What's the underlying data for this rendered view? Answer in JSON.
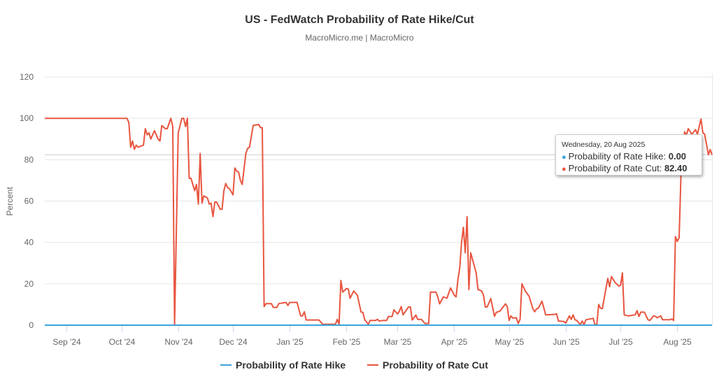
{
  "header": {
    "title": "US - FedWatch Probability of Rate Hike/Cut",
    "subtitle": "MacroMicro.me | MacroMicro"
  },
  "tooltip": {
    "date": "Wednesday, 20 Aug 2025",
    "rows": [
      {
        "label": "Probability of Rate Hike: ",
        "value": "0.00",
        "color": "#3ba3d8"
      },
      {
        "label": "Probability of Rate Cut: ",
        "value": "82.40",
        "color": "#e8553f"
      }
    ]
  },
  "chart_data": {
    "type": "line",
    "title": "US - FedWatch Probability of Rate Hike/Cut",
    "subtitle": "MacroMicro.me | MacroMicro",
    "xlabel": "",
    "ylabel": "Percent",
    "ylim": [
      0,
      120
    ],
    "yticks": [
      "0",
      "20",
      "40",
      "60",
      "80",
      "100",
      "120"
    ],
    "xlim": [
      "2024-08-20",
      "2025-08-20"
    ],
    "xticks": [
      {
        "date": "2024-09-01",
        "label": "Sep '24"
      },
      {
        "date": "2024-10-01",
        "label": "Oct '24"
      },
      {
        "date": "2024-11-01",
        "label": "Nov '24"
      },
      {
        "date": "2024-12-01",
        "label": "Dec '24"
      },
      {
        "date": "2025-01-01",
        "label": "Jan '25"
      },
      {
        "date": "2025-02-01",
        "label": "Feb '25"
      },
      {
        "date": "2025-03-01",
        "label": "Mar '25"
      },
      {
        "date": "2025-04-01",
        "label": "Apr '25"
      },
      {
        "date": "2025-05-01",
        "label": "May '25"
      },
      {
        "date": "2025-06-01",
        "label": "Jun '25"
      },
      {
        "date": "2025-07-01",
        "label": "Jul '25"
      },
      {
        "date": "2025-08-01",
        "label": "Aug '25"
      }
    ],
    "grid": true,
    "legend": "bottom",
    "crosshair_value": 82.4,
    "series": [
      {
        "name": "Probability of Rate Hike",
        "color": "#3ba3d8",
        "points": [
          [
            "2024-08-20",
            0
          ],
          [
            "2025-08-20",
            0
          ]
        ]
      },
      {
        "name": "Probability of Rate Cut",
        "color": "#e8553f",
        "points": [
          [
            "2024-08-20",
            100
          ],
          [
            "2024-10-04",
            100
          ],
          [
            "2024-10-05",
            98
          ],
          [
            "2024-10-06",
            86
          ],
          [
            "2024-10-07",
            89
          ],
          [
            "2024-10-08",
            85
          ],
          [
            "2024-10-09",
            87
          ],
          [
            "2024-10-10",
            86
          ],
          [
            "2024-10-13",
            87
          ],
          [
            "2024-10-14",
            95
          ],
          [
            "2024-10-15",
            92
          ],
          [
            "2024-10-16",
            93
          ],
          [
            "2024-10-17",
            90
          ],
          [
            "2024-10-19",
            94
          ],
          [
            "2024-10-21",
            90
          ],
          [
            "2024-10-22",
            89
          ],
          [
            "2024-10-23",
            96.5
          ],
          [
            "2024-10-25",
            95
          ],
          [
            "2024-10-26",
            95
          ],
          [
            "2024-10-28",
            100
          ],
          [
            "2024-10-29",
            96
          ],
          [
            "2024-10-30",
            0
          ],
          [
            "2024-11-01",
            93
          ],
          [
            "2024-11-03",
            100
          ],
          [
            "2024-11-04",
            100
          ],
          [
            "2024-11-05",
            96
          ],
          [
            "2024-11-06",
            100
          ],
          [
            "2024-11-07",
            71
          ],
          [
            "2024-11-08",
            71
          ],
          [
            "2024-11-10",
            65
          ],
          [
            "2024-11-11",
            68
          ],
          [
            "2024-11-12",
            58.5
          ],
          [
            "2024-11-13",
            83
          ],
          [
            "2024-11-14",
            59
          ],
          [
            "2024-11-15",
            62.5
          ],
          [
            "2024-11-17",
            61.5
          ],
          [
            "2024-11-18",
            58.5
          ],
          [
            "2024-11-19",
            59
          ],
          [
            "2024-11-20",
            52.5
          ],
          [
            "2024-11-21",
            59.5
          ],
          [
            "2024-11-22",
            59.5
          ],
          [
            "2024-11-24",
            56
          ],
          [
            "2024-11-25",
            56
          ],
          [
            "2024-11-26",
            65
          ],
          [
            "2024-11-27",
            68.5
          ],
          [
            "2024-11-28",
            66.5
          ],
          [
            "2024-11-29",
            66
          ],
          [
            "2024-12-01",
            63
          ],
          [
            "2024-12-02",
            76
          ],
          [
            "2024-12-03",
            74.5
          ],
          [
            "2024-12-04",
            74
          ],
          [
            "2024-12-05",
            70
          ],
          [
            "2024-12-06",
            68
          ],
          [
            "2024-12-08",
            83
          ],
          [
            "2024-12-09",
            85.5
          ],
          [
            "2024-12-10",
            86
          ],
          [
            "2024-12-12",
            96.5
          ],
          [
            "2024-12-15",
            97
          ],
          [
            "2024-12-16",
            95.5
          ],
          [
            "2024-12-17",
            95.5
          ],
          [
            "2024-12-18",
            9
          ],
          [
            "2024-12-19",
            10.4
          ],
          [
            "2024-12-22",
            10.4
          ],
          [
            "2024-12-23",
            8.6
          ],
          [
            "2024-12-25",
            8.6
          ],
          [
            "2024-12-26",
            10.4
          ],
          [
            "2024-12-30",
            11
          ],
          [
            "2024-12-31",
            9.5
          ],
          [
            "2025-01-01",
            11
          ],
          [
            "2025-01-05",
            11
          ],
          [
            "2025-01-07",
            4.5
          ],
          [
            "2025-01-08",
            4.5
          ],
          [
            "2025-01-09",
            6.5
          ],
          [
            "2025-01-10",
            2.5
          ],
          [
            "2025-01-17",
            2.5
          ],
          [
            "2025-01-19",
            0.4
          ],
          [
            "2025-01-26",
            0.4
          ],
          [
            "2025-01-27",
            2.8
          ],
          [
            "2025-01-28",
            0.4
          ],
          [
            "2025-01-29",
            21.6
          ],
          [
            "2025-01-30",
            16
          ],
          [
            "2025-02-01",
            17.7
          ],
          [
            "2025-02-02",
            17.5
          ],
          [
            "2025-02-03",
            13
          ],
          [
            "2025-02-05",
            16.5
          ],
          [
            "2025-02-07",
            14.5
          ],
          [
            "2025-02-09",
            6.4
          ],
          [
            "2025-02-10",
            6.2
          ],
          [
            "2025-02-11",
            2.7
          ],
          [
            "2025-02-13",
            0.4
          ],
          [
            "2025-02-14",
            2.3
          ],
          [
            "2025-02-17",
            2.3
          ],
          [
            "2025-02-18",
            2.8
          ],
          [
            "2025-02-19",
            2
          ],
          [
            "2025-02-21",
            2.3
          ],
          [
            "2025-02-23",
            2.3
          ],
          [
            "2025-02-24",
            4.2
          ],
          [
            "2025-02-26",
            4.2
          ],
          [
            "2025-02-27",
            7.4
          ],
          [
            "2025-03-01",
            5.4
          ],
          [
            "2025-03-02",
            6.8
          ],
          [
            "2025-03-03",
            9
          ],
          [
            "2025-03-04",
            5
          ],
          [
            "2025-03-07",
            8.8
          ],
          [
            "2025-03-08",
            8.8
          ],
          [
            "2025-03-09",
            2.5
          ],
          [
            "2025-03-11",
            4.9
          ],
          [
            "2025-03-12",
            2.8
          ],
          [
            "2025-03-14",
            2.8
          ],
          [
            "2025-03-16",
            0.8
          ],
          [
            "2025-03-18",
            0.8
          ],
          [
            "2025-03-19",
            16
          ],
          [
            "2025-03-22",
            16
          ],
          [
            "2025-03-23",
            13.7
          ],
          [
            "2025-03-24",
            10.3
          ],
          [
            "2025-03-26",
            13.7
          ],
          [
            "2025-03-28",
            13
          ],
          [
            "2025-03-30",
            18
          ],
          [
            "2025-04-01",
            14.5
          ],
          [
            "2025-04-02",
            13.7
          ],
          [
            "2025-04-03",
            22
          ],
          [
            "2025-04-04",
            27.6
          ],
          [
            "2025-04-05",
            40
          ],
          [
            "2025-04-06",
            47.3
          ],
          [
            "2025-04-07",
            35
          ],
          [
            "2025-04-08",
            52.4
          ],
          [
            "2025-04-09",
            17.2
          ],
          [
            "2025-04-10",
            35
          ],
          [
            "2025-04-13",
            25.3
          ],
          [
            "2025-04-14",
            17.2
          ],
          [
            "2025-04-16",
            16.5
          ],
          [
            "2025-04-17",
            14.5
          ],
          [
            "2025-04-18",
            8.8
          ],
          [
            "2025-04-19",
            8.8
          ],
          [
            "2025-04-21",
            12.8
          ],
          [
            "2025-04-23",
            4.3
          ],
          [
            "2025-04-24",
            6.2
          ],
          [
            "2025-04-26",
            6.8
          ],
          [
            "2025-04-29",
            10.3
          ],
          [
            "2025-04-30",
            9
          ],
          [
            "2025-05-01",
            2.3
          ],
          [
            "2025-05-02",
            4.5
          ],
          [
            "2025-05-03",
            3.4
          ],
          [
            "2025-05-05",
            3.6
          ],
          [
            "2025-05-06",
            0.8
          ],
          [
            "2025-05-07",
            2.8
          ],
          [
            "2025-05-08",
            20
          ],
          [
            "2025-05-10",
            16.3
          ],
          [
            "2025-05-12",
            13.9
          ],
          [
            "2025-05-14",
            7.9
          ],
          [
            "2025-05-15",
            6.5
          ],
          [
            "2025-05-16",
            7.9
          ],
          [
            "2025-05-17",
            8.2
          ],
          [
            "2025-05-19",
            11.6
          ],
          [
            "2025-05-21",
            5
          ],
          [
            "2025-05-26",
            5.2
          ],
          [
            "2025-05-27",
            5.5
          ],
          [
            "2025-05-28",
            2
          ],
          [
            "2025-05-31",
            1.8
          ],
          [
            "2025-06-01",
            1
          ],
          [
            "2025-06-03",
            4.5
          ],
          [
            "2025-06-04",
            2.8
          ],
          [
            "2025-06-05",
            5
          ],
          [
            "2025-06-06",
            2.6
          ],
          [
            "2025-06-07",
            2.3
          ],
          [
            "2025-06-09",
            0.3
          ],
          [
            "2025-06-10",
            2
          ],
          [
            "2025-06-11",
            0.2
          ],
          [
            "2025-06-12",
            2.6
          ],
          [
            "2025-06-16",
            3.3
          ],
          [
            "2025-06-17",
            0.2
          ],
          [
            "2025-06-18",
            0.2
          ],
          [
            "2025-06-19",
            10
          ],
          [
            "2025-06-20",
            8.2
          ],
          [
            "2025-06-21",
            8
          ],
          [
            "2025-06-24",
            22.6
          ],
          [
            "2025-06-25",
            18.6
          ],
          [
            "2025-06-26",
            23.5
          ],
          [
            "2025-06-28",
            20.6
          ],
          [
            "2025-06-30",
            18.9
          ],
          [
            "2025-07-01",
            19.3
          ],
          [
            "2025-07-02",
            25.3
          ],
          [
            "2025-07-03",
            5
          ],
          [
            "2025-07-05",
            4.5
          ],
          [
            "2025-07-07",
            4.7
          ],
          [
            "2025-07-09",
            5
          ],
          [
            "2025-07-10",
            7
          ],
          [
            "2025-07-11",
            4.2
          ],
          [
            "2025-07-12",
            6.3
          ],
          [
            "2025-07-14",
            6.3
          ],
          [
            "2025-07-16",
            2.6
          ],
          [
            "2025-07-17",
            2.3
          ],
          [
            "2025-07-19",
            4.5
          ],
          [
            "2025-07-20",
            4.3
          ],
          [
            "2025-07-21",
            3.6
          ],
          [
            "2025-07-23",
            4.5
          ],
          [
            "2025-07-24",
            2.6
          ],
          [
            "2025-07-28",
            2.6
          ],
          [
            "2025-07-29",
            3
          ],
          [
            "2025-07-30",
            2.3
          ],
          [
            "2025-07-31",
            42.8
          ],
          [
            "2025-08-01",
            40.5
          ],
          [
            "2025-08-02",
            42.3
          ],
          [
            "2025-08-03",
            72.6
          ],
          [
            "2025-08-05",
            93.5
          ],
          [
            "2025-08-06",
            91.8
          ],
          [
            "2025-08-07",
            95
          ],
          [
            "2025-08-09",
            92.3
          ],
          [
            "2025-08-11",
            94.5
          ],
          [
            "2025-08-12",
            92.3
          ],
          [
            "2025-08-14",
            99.7
          ],
          [
            "2025-08-15",
            93
          ],
          [
            "2025-08-16",
            92.3
          ],
          [
            "2025-08-18",
            82.4
          ],
          [
            "2025-08-19",
            84.9
          ],
          [
            "2025-08-20",
            82.4
          ]
        ]
      }
    ]
  }
}
